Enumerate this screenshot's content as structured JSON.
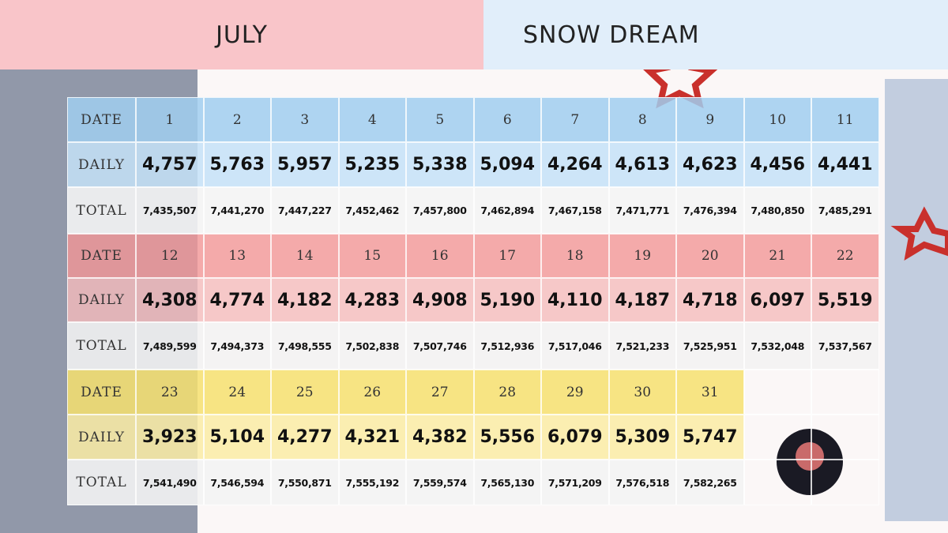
{
  "header": {
    "title": "JULY",
    "song": "SNOW DREAM"
  },
  "table": {
    "blocks": [
      {
        "date_label": "DATE",
        "daily_label": "DAILY",
        "total_label": "TOTAL",
        "dates": [
          "1",
          "2",
          "3",
          "4",
          "5",
          "6",
          "7",
          "8",
          "9",
          "10",
          "11"
        ],
        "daily": [
          "4,757",
          "5,763",
          "5,957",
          "5,235",
          "5,338",
          "5,094",
          "4,264",
          "4,613",
          "4,623",
          "4,456",
          "4,441"
        ],
        "total": [
          "7,435,507",
          "7,441,270",
          "7,447,227",
          "7,452,462",
          "7,457,800",
          "7,462,894",
          "7,467,158",
          "7,471,771",
          "7,476,394",
          "7,480,850",
          "7,485,291"
        ]
      },
      {
        "date_label": "DATE",
        "daily_label": "DAILY",
        "total_label": "TOTAL",
        "dates": [
          "12",
          "13",
          "14",
          "15",
          "16",
          "17",
          "18",
          "19",
          "20",
          "21",
          "22"
        ],
        "daily": [
          "4,308",
          "4,774",
          "4,182",
          "4,283",
          "4,908",
          "5,190",
          "4,110",
          "4,187",
          "4,718",
          "6,097",
          "5,519"
        ],
        "total": [
          "7,489,599",
          "7,494,373",
          "7,498,555",
          "7,502,838",
          "7,507,746",
          "7,512,936",
          "7,517,046",
          "7,521,233",
          "7,525,951",
          "7,532,048",
          "7,537,567"
        ]
      },
      {
        "date_label": "DATE",
        "daily_label": "DAILY",
        "total_label": "TOTAL",
        "dates": [
          "23",
          "24",
          "25",
          "26",
          "27",
          "28",
          "29",
          "30",
          "31"
        ],
        "daily": [
          "3,923",
          "5,104",
          "4,277",
          "4,321",
          "4,382",
          "5,556",
          "6,079",
          "5,309",
          "5,747"
        ],
        "total": [
          "7,541,490",
          "7,546,594",
          "7,550,871",
          "7,555,192",
          "7,559,574",
          "7,565,130",
          "7,571,209",
          "7,576,518",
          "7,582,265"
        ]
      }
    ]
  }
}
